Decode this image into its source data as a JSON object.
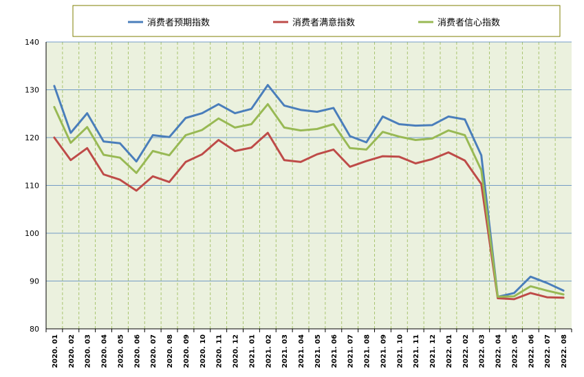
{
  "chart_data": {
    "type": "line",
    "title": "",
    "xlabel": "",
    "ylabel": "",
    "ylim": [
      80,
      140
    ],
    "yticks": [
      80,
      90,
      100,
      110,
      120,
      130,
      140
    ],
    "grid": true,
    "legend_position": "top",
    "x": [
      "2020.01",
      "2020.02",
      "2020.03",
      "2020.04",
      "2020.05",
      "2020.06",
      "2020.07",
      "2020.08",
      "2020.09",
      "2020.10",
      "2020.11",
      "2020.12",
      "2021.01",
      "2021.02",
      "2021.03",
      "2021.04",
      "2021.05",
      "2021.06",
      "2021.07",
      "2021.08",
      "2021.09",
      "2021.10",
      "2021.11",
      "2021.12",
      "2022.01",
      "2022.02",
      "2022.03",
      "2022.04",
      "2022.05",
      "2022.06",
      "2022.07",
      "2022.08"
    ],
    "series": [
      {
        "name": "消费者预期指数",
        "color": "#4a7ebb",
        "values": [
          130.8,
          121.0,
          125.1,
          119.2,
          118.8,
          115.0,
          120.5,
          120.1,
          124.1,
          125.1,
          127.0,
          125.1,
          126.0,
          131.0,
          126.7,
          125.8,
          125.4,
          126.2,
          120.3,
          119.0,
          124.4,
          122.8,
          122.5,
          122.6,
          124.4,
          123.8,
          116.3,
          86.7,
          87.5,
          90.9,
          89.6,
          88.0
        ]
      },
      {
        "name": "消费者满意指数",
        "color": "#be4b48",
        "values": [
          120.0,
          115.3,
          117.8,
          112.3,
          111.2,
          108.9,
          111.9,
          110.7,
          114.9,
          116.5,
          119.5,
          117.2,
          117.9,
          121.0,
          115.3,
          114.9,
          116.5,
          117.5,
          113.9,
          115.1,
          116.1,
          116.0,
          114.6,
          115.5,
          116.9,
          115.2,
          110.3,
          86.4,
          86.2,
          87.5,
          86.6,
          86.5
        ]
      },
      {
        "name": "消费者信心指数",
        "color": "#98b954",
        "values": [
          126.4,
          118.9,
          122.2,
          116.4,
          115.8,
          112.6,
          117.2,
          116.3,
          120.5,
          121.6,
          124.0,
          122.1,
          122.8,
          127.0,
          122.1,
          121.5,
          121.8,
          122.8,
          117.8,
          117.5,
          121.2,
          120.2,
          119.5,
          119.8,
          121.5,
          120.5,
          113.2,
          86.7,
          86.8,
          88.9,
          88.0,
          87.2
        ]
      }
    ]
  }
}
